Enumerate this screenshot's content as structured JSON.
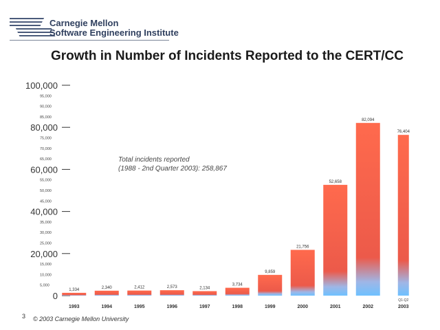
{
  "header": {
    "org_line1": "Carnegie Mellon",
    "org_line2": "Software Engineering Institute"
  },
  "footer": {
    "page_number": "3",
    "copyright": "© 2003 Carnegie Mellon University"
  },
  "colors": {
    "bar_top": "#ff6a4d",
    "bar_bottom": "#6ec1ff",
    "axis": "#333333"
  },
  "chart_data": {
    "type": "bar",
    "title": "Growth in Number of Incidents Reported to the CERT/CC",
    "categories": [
      "1993",
      "1994",
      "1995",
      "1996",
      "1997",
      "1998",
      "1999",
      "2000",
      "2001",
      "2002",
      "2003"
    ],
    "values": [
      1334,
      2340,
      2412,
      2573,
      2134,
      3734,
      9859,
      21756,
      52658,
      82094,
      76404
    ],
    "value_labels": [
      "1,334",
      "2,340",
      "2,412",
      "2,573",
      "2,134",
      "3,734",
      "9,859",
      "21,756",
      "52,658",
      "82,094",
      "76,404"
    ],
    "ylim": [
      0,
      100000
    ],
    "major_ticks": [
      "100,000",
      "80,000",
      "60,000",
      "40,000",
      "20,000",
      "0"
    ],
    "minor_ticks": [
      "95,000",
      "90,000",
      "85,000",
      "75,000",
      "70,000",
      "65,000",
      "55,000",
      "50,000",
      "45,000",
      "35,000",
      "30,000",
      "25,000",
      "15,000",
      "10,000",
      "5,000"
    ],
    "annotation": {
      "line1": "Total incidents reported",
      "line2": "(1988 - 2nd Quarter 2003): 258,867"
    },
    "note_2003": "Q1-Q2"
  }
}
